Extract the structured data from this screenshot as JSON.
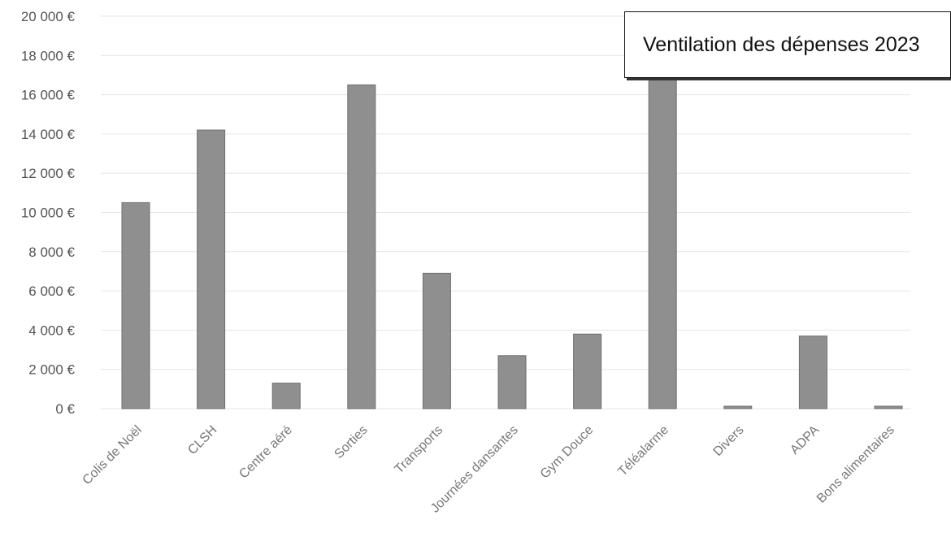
{
  "chart_data": {
    "type": "bar",
    "title": "Ventilation des dépenses 2023",
    "categories": [
      "Colis de Noël",
      "CLSH",
      "Centre aéré",
      "Sorties",
      "Transports",
      "Journées dansantes",
      "Gym Douce",
      "Téléalarme",
      "Divers",
      "ADPA",
      "Bons alimentaires"
    ],
    "values": [
      10500,
      14200,
      1300,
      16500,
      6900,
      2700,
      3800,
      17500,
      30,
      3700,
      30
    ],
    "ylim": [
      0,
      20000
    ],
    "yticks": [
      0,
      2000,
      4000,
      6000,
      8000,
      10000,
      12000,
      14000,
      16000,
      18000,
      20000
    ],
    "ytick_labels": [
      "0 €",
      "2 000 €",
      "4 000 €",
      "6 000 €",
      "8 000 €",
      "10 000 €",
      "12 000 €",
      "14 000 €",
      "16 000 €",
      "18 000 €",
      "20 000 €"
    ],
    "grid": true,
    "legend": "none",
    "bar_color": "#8f8f8f"
  }
}
